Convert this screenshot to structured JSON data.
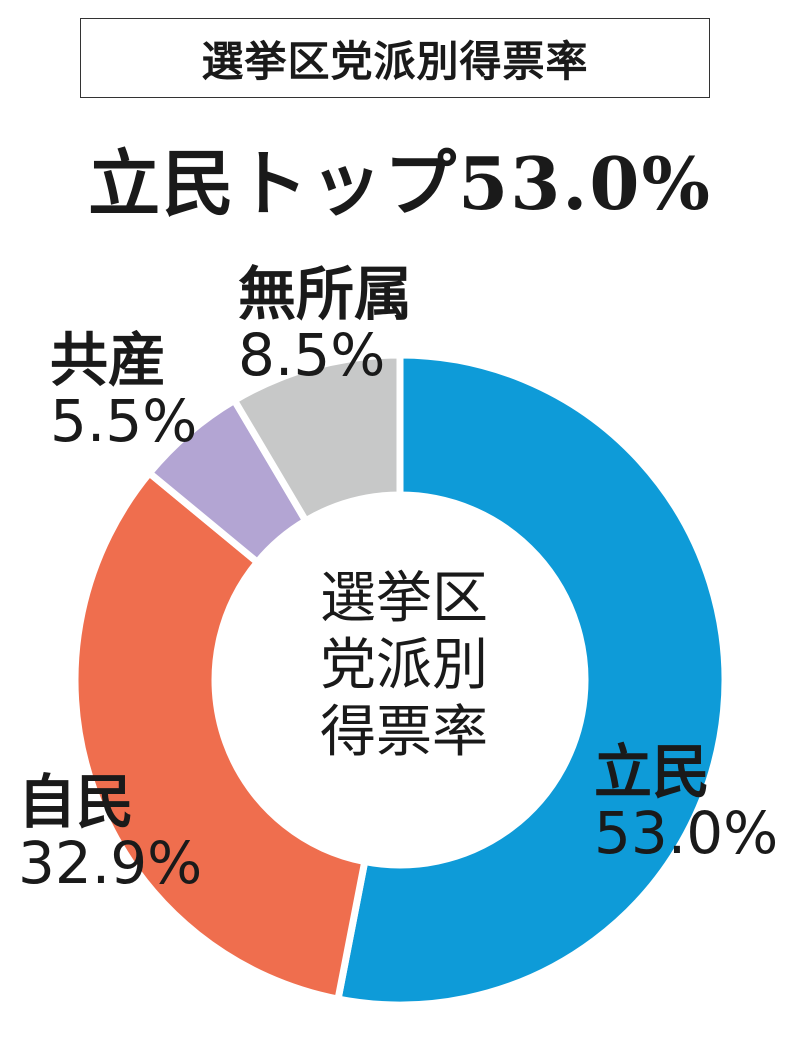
{
  "header": {
    "title": "選挙区党派別得票率",
    "headline": "立民トップ53.0%"
  },
  "center_text": [
    "選挙区",
    "党派別",
    "得票率"
  ],
  "colors": {
    "立民": "#0e9bd8",
    "自民": "#ef6e4e",
    "共産": "#b3a5d3",
    "無所属": "#c7c8c8"
  },
  "chart_data": {
    "type": "pie",
    "title": "選挙区党派別得票率",
    "hole": true,
    "slices": [
      {
        "label": "立民",
        "value": 53.0,
        "display": "53.0%",
        "color": "#0e9bd8"
      },
      {
        "label": "自民",
        "value": 32.9,
        "display": "32.9%",
        "color": "#ef6e4e"
      },
      {
        "label": "共産",
        "value": 5.5,
        "display": "5.5%",
        "color": "#b3a5d3"
      },
      {
        "label": "無所属",
        "value": 8.5,
        "display": "8.5%",
        "color": "#c7c8c8"
      }
    ]
  }
}
